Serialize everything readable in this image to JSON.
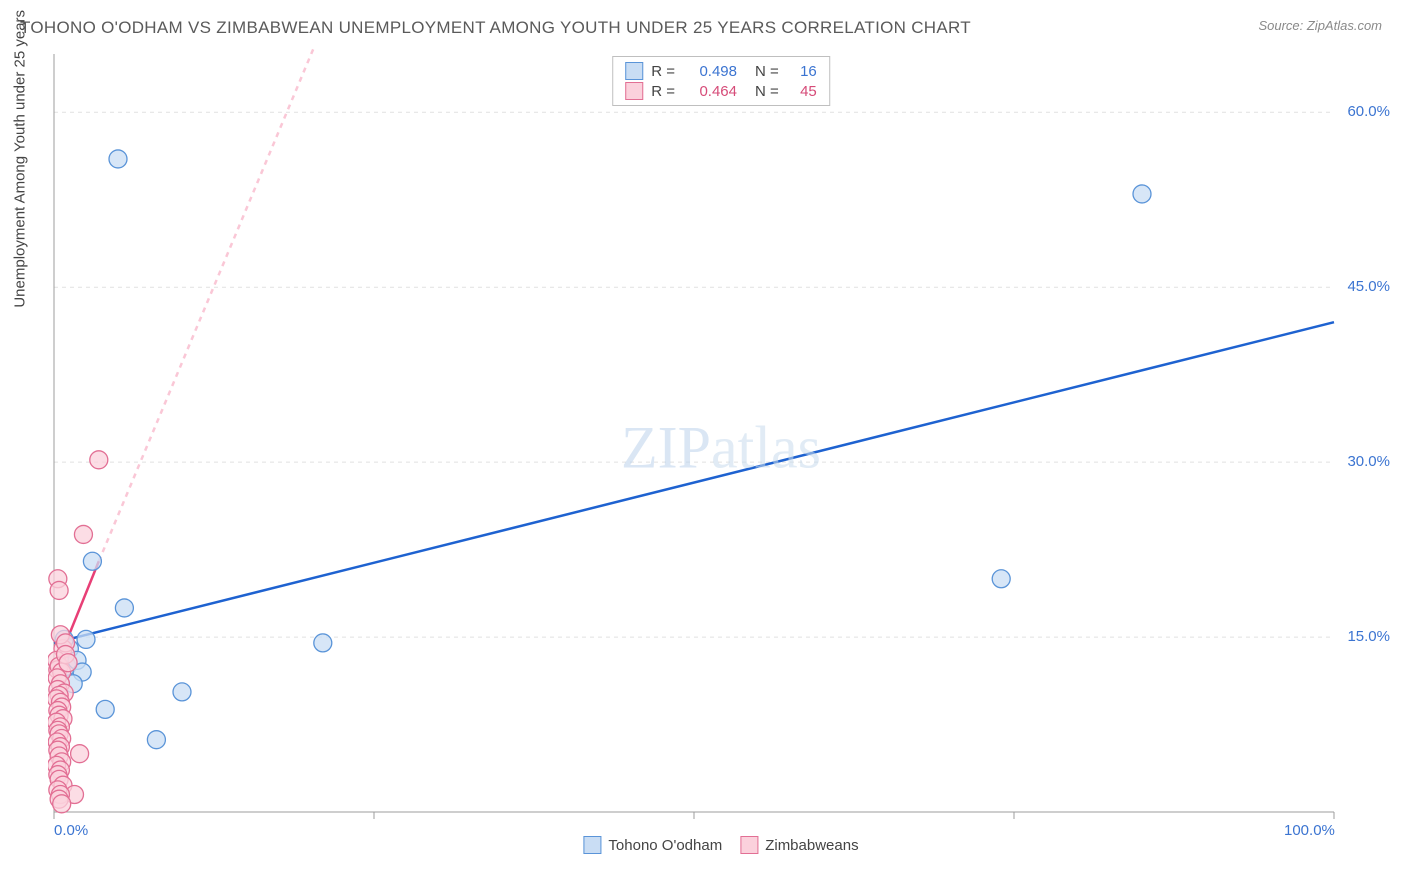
{
  "title": "TOHONO O'ODHAM VS ZIMBABWEAN UNEMPLOYMENT AMONG YOUTH UNDER 25 YEARS CORRELATION CHART",
  "source": "Source: ZipAtlas.com",
  "watermark_zip": "ZIP",
  "watermark_atlas": "atlas",
  "y_axis_label": "Unemployment Among Youth under 25 years",
  "chart": {
    "type": "scatter",
    "background_color": "#ffffff",
    "grid_color": "#e1e1e1",
    "axis_color": "#9c9c9c",
    "xlim": [
      0,
      100
    ],
    "ylim": [
      0,
      65
    ],
    "x_ticks": [
      {
        "v": 0,
        "label": "0.0%"
      },
      {
        "v": 100,
        "label": "100.0%"
      }
    ],
    "y_ticks": [
      {
        "v": 15,
        "label": "15.0%"
      },
      {
        "v": 30,
        "label": "30.0%"
      },
      {
        "v": 45,
        "label": "45.0%"
      },
      {
        "v": 60,
        "label": "60.0%"
      }
    ],
    "x_grid_ticks": [
      0,
      25,
      50,
      75,
      100
    ],
    "tick_label_color": "#3b74d1",
    "legend_top": {
      "border_color": "#bfbfbf",
      "rows": [
        {
          "swatch_fill": "#c9ddf4",
          "swatch_border": "#5a94d8",
          "r_label": "R =",
          "r_value": "0.498",
          "r_color": "#3b74d1",
          "n_label": "N =",
          "n_value": "16",
          "n_color": "#3b74d1"
        },
        {
          "swatch_fill": "#fbd1dc",
          "swatch_border": "#e26f94",
          "r_label": "R =",
          "r_value": "0.464",
          "r_color": "#d64b78",
          "n_label": "N =",
          "n_value": "45",
          "n_color": "#d64b78"
        }
      ]
    },
    "legend_bottom": {
      "items": [
        {
          "swatch_fill": "#c9ddf4",
          "swatch_border": "#5a94d8",
          "label": "Tohono O'odham"
        },
        {
          "swatch_fill": "#fbd1dc",
          "swatch_border": "#e26f94",
          "label": "Zimbabweans"
        }
      ]
    },
    "series": [
      {
        "name": "Tohono O'odham",
        "marker_color_fill": "#c9ddf4",
        "marker_color_stroke": "#5a94d8",
        "marker_opacity": 0.75,
        "marker_radius": 9,
        "trend_color": "#1e62d0",
        "trend_width": 2.5,
        "trend_dash": "none",
        "trend_x1": 0,
        "trend_y1": 14.5,
        "trend_x2": 100,
        "trend_y2": 42.0,
        "points": [
          {
            "x": 5.0,
            "y": 56.0
          },
          {
            "x": 85.0,
            "y": 53.0
          },
          {
            "x": 74.0,
            "y": 20.0
          },
          {
            "x": 21.0,
            "y": 14.5
          },
          {
            "x": 3.0,
            "y": 21.5
          },
          {
            "x": 5.5,
            "y": 17.5
          },
          {
            "x": 2.5,
            "y": 14.8
          },
          {
            "x": 1.2,
            "y": 14.0
          },
          {
            "x": 1.0,
            "y": 12.5
          },
          {
            "x": 10.0,
            "y": 10.3
          },
          {
            "x": 4.0,
            "y": 8.8
          },
          {
            "x": 8.0,
            "y": 6.2
          },
          {
            "x": 1.8,
            "y": 13.0
          },
          {
            "x": 2.2,
            "y": 12.0
          },
          {
            "x": 0.8,
            "y": 14.8
          },
          {
            "x": 1.5,
            "y": 11.0
          }
        ]
      },
      {
        "name": "Zimbabweans",
        "marker_color_fill": "#fbd1dc",
        "marker_color_stroke": "#e26f94",
        "marker_opacity": 0.75,
        "marker_radius": 9,
        "trend_color": "#e83f76",
        "trend_width": 2.5,
        "trend_dash": "none",
        "trend_x1": 0,
        "trend_y1": 12.0,
        "trend_x2": 3.5,
        "trend_y2": 21.5,
        "trend_extend_color": "#fac7d6",
        "trend_extend_dash": "5,5",
        "trend_extend_x1": 3.5,
        "trend_extend_y1": 21.5,
        "trend_extend_x2": 22.0,
        "trend_extend_y2": 72.0,
        "points": [
          {
            "x": 3.5,
            "y": 30.2
          },
          {
            "x": 2.3,
            "y": 23.8
          },
          {
            "x": 0.3,
            "y": 20.0
          },
          {
            "x": 0.4,
            "y": 19.0
          },
          {
            "x": 0.7,
            "y": 14.0
          },
          {
            "x": 0.5,
            "y": 15.2
          },
          {
            "x": 0.9,
            "y": 14.5
          },
          {
            "x": 0.2,
            "y": 13.0
          },
          {
            "x": 0.3,
            "y": 12.2
          },
          {
            "x": 0.4,
            "y": 12.5
          },
          {
            "x": 0.6,
            "y": 12.0
          },
          {
            "x": 0.25,
            "y": 11.5
          },
          {
            "x": 0.5,
            "y": 11.0
          },
          {
            "x": 0.3,
            "y": 10.5
          },
          {
            "x": 0.8,
            "y": 10.2
          },
          {
            "x": 0.4,
            "y": 10.0
          },
          {
            "x": 0.2,
            "y": 9.7
          },
          {
            "x": 0.5,
            "y": 9.4
          },
          {
            "x": 0.6,
            "y": 9.0
          },
          {
            "x": 0.3,
            "y": 8.7
          },
          {
            "x": 0.4,
            "y": 8.3
          },
          {
            "x": 0.7,
            "y": 8.0
          },
          {
            "x": 0.2,
            "y": 7.7
          },
          {
            "x": 0.5,
            "y": 7.3
          },
          {
            "x": 0.3,
            "y": 7.0
          },
          {
            "x": 0.4,
            "y": 6.7
          },
          {
            "x": 0.6,
            "y": 6.3
          },
          {
            "x": 0.25,
            "y": 6.0
          },
          {
            "x": 0.5,
            "y": 5.6
          },
          {
            "x": 2.0,
            "y": 5.0
          },
          {
            "x": 0.3,
            "y": 5.3
          },
          {
            "x": 0.4,
            "y": 4.8
          },
          {
            "x": 0.6,
            "y": 4.3
          },
          {
            "x": 0.2,
            "y": 4.0
          },
          {
            "x": 0.5,
            "y": 3.6
          },
          {
            "x": 0.3,
            "y": 3.2
          },
          {
            "x": 0.4,
            "y": 2.8
          },
          {
            "x": 0.7,
            "y": 2.3
          },
          {
            "x": 1.6,
            "y": 1.5
          },
          {
            "x": 0.3,
            "y": 1.9
          },
          {
            "x": 0.5,
            "y": 1.5
          },
          {
            "x": 0.4,
            "y": 1.1
          },
          {
            "x": 0.6,
            "y": 0.7
          },
          {
            "x": 0.9,
            "y": 13.5
          },
          {
            "x": 1.1,
            "y": 12.8
          }
        ]
      }
    ]
  }
}
